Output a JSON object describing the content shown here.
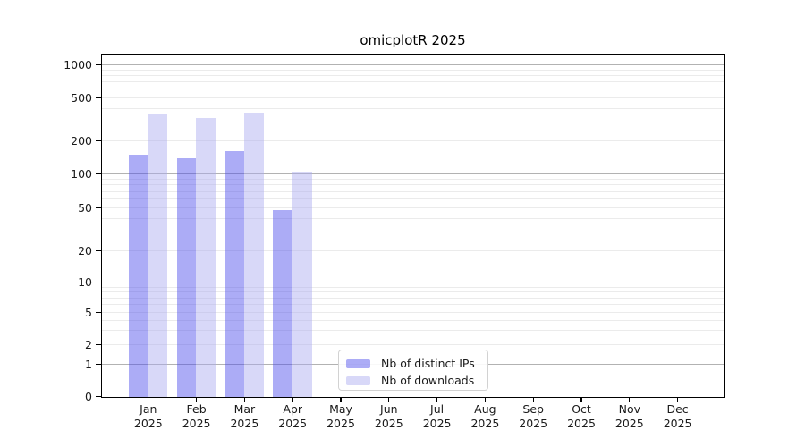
{
  "chart_data": {
    "type": "bar",
    "title": "omicplotR 2025",
    "categories": [
      "Jan 2025",
      "Feb 2025",
      "Mar 2025",
      "Apr 2025",
      "May 2025",
      "Jun 2025",
      "Jul 2025",
      "Aug 2025",
      "Sep 2025",
      "Oct 2025",
      "Nov 2025",
      "Dec 2025"
    ],
    "series": [
      {
        "name": "Nb of distinct IPs",
        "color": "#4848eb",
        "opacity": 0.45,
        "values": [
          150,
          140,
          162,
          48,
          0,
          0,
          0,
          0,
          0,
          0,
          0,
          0
        ]
      },
      {
        "name": "Nb of downloads",
        "color": "#a8a8f0",
        "opacity": 0.45,
        "values": [
          355,
          330,
          369,
          105,
          0,
          0,
          0,
          0,
          0,
          0,
          0,
          0
        ]
      }
    ],
    "yscale": "log-like",
    "yticks": [
      0,
      1,
      2,
      5,
      10,
      20,
      50,
      100,
      200,
      500,
      1000
    ],
    "ylim": [
      0,
      1000
    ],
    "grid": "horizontal",
    "legend_position": "bottom-center"
  },
  "colors": {
    "bar_distinct_ips_rendered": "#acacf6",
    "bar_downloads_rendered": "#d8d8f8",
    "grid_major": "#b2b2b2",
    "grid_minor": "#ebebeb",
    "axis": "#000000"
  }
}
